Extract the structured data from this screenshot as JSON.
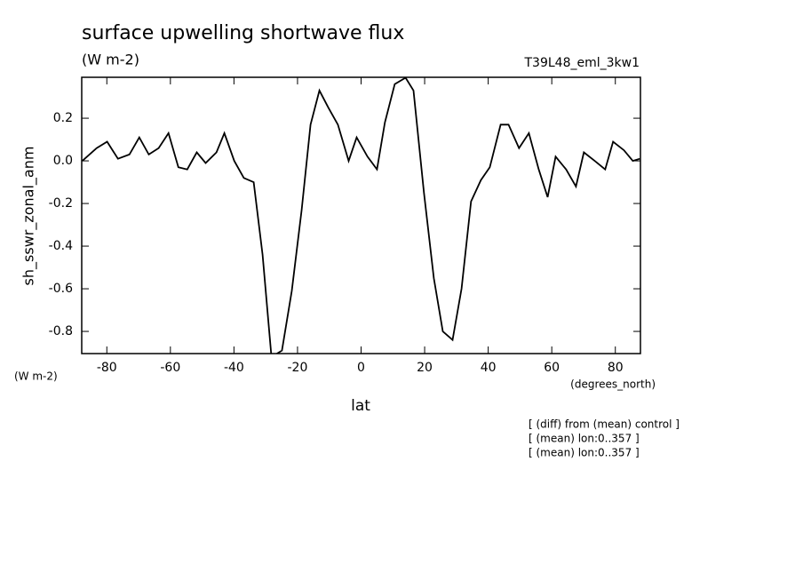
{
  "chart_data": {
    "type": "line",
    "title": "surface upwelling shortwave flux",
    "units_label": "(W m-2)",
    "run_label": "T39L48_eml_3kw1",
    "ylabel": "sh_sswr_zonal_anm",
    "y_units": "(W m-2)",
    "x_units": "(degrees_north)",
    "xlabel": "lat",
    "notes": [
      "[ (diff) from (mean) control ]",
      "[ (mean) lon:0..357 ]",
      "[ (mean) lon:0..357 ]"
    ],
    "color": "#000000",
    "x": [
      -87.7,
      -83.2,
      -79.9,
      -76.5,
      -72.9,
      -69.8,
      -66.8,
      -63.7,
      -60.6,
      -57.5,
      -54.7,
      -51.7,
      -48.9,
      -45.5,
      -43.0,
      -39.9,
      -36.9,
      -33.8,
      -31.0,
      -28.2,
      -24.9,
      -21.8,
      -18.7,
      -15.9,
      -13.1,
      -10.3,
      -7.3,
      -3.9,
      -1.4,
      2.0,
      5.0,
      7.5,
      10.6,
      14.0,
      16.5,
      19.8,
      22.9,
      25.7,
      28.8,
      31.6,
      34.6,
      37.7,
      40.5,
      43.9,
      46.4,
      49.7,
      52.8,
      55.9,
      58.7,
      61.2,
      64.5,
      67.6,
      70.1,
      73.5,
      76.8,
      79.3,
      82.7,
      85.5,
      87.7
    ],
    "values": [
      0.0,
      0.06,
      0.09,
      0.01,
      0.03,
      0.11,
      0.03,
      0.06,
      0.13,
      -0.03,
      -0.04,
      0.04,
      -0.01,
      0.04,
      0.13,
      0.0,
      -0.08,
      -0.1,
      -0.44,
      -0.92,
      -0.89,
      -0.61,
      -0.23,
      0.17,
      0.33,
      0.25,
      0.17,
      0.0,
      0.11,
      0.02,
      -0.04,
      0.18,
      0.36,
      0.39,
      0.33,
      -0.15,
      -0.55,
      -0.8,
      -0.84,
      -0.6,
      -0.19,
      -0.09,
      -0.03,
      0.17,
      0.17,
      0.06,
      0.13,
      -0.04,
      -0.17,
      0.02,
      -0.04,
      -0.12,
      0.04,
      0.0,
      -0.04,
      0.09,
      0.05,
      0.0,
      0.01
    ],
    "xlim": [
      -87.9,
      87.9
    ],
    "ylim": [
      -0.904,
      0.392
    ],
    "xticks": [
      -80,
      -60,
      -40,
      -20,
      0,
      20,
      40,
      60,
      80
    ],
    "yticks": [
      -0.8,
      -0.6,
      -0.4,
      -0.2,
      {
        "value": 0,
        "label": "0.0"
      },
      0.2
    ]
  }
}
